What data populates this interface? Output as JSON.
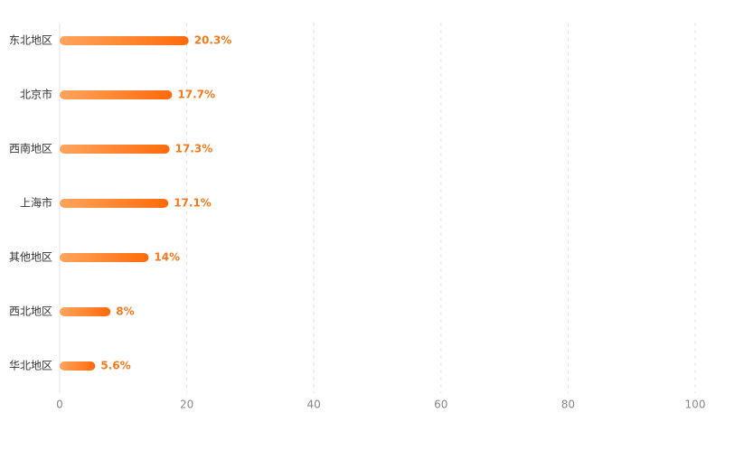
{
  "chart_data": {
    "type": "bar",
    "orientation": "horizontal",
    "categories": [
      "东北地区",
      "北京市",
      "西南地区",
      "上海市",
      "其他地区",
      "西北地区",
      "华北地区"
    ],
    "values": [
      20.3,
      17.7,
      17.3,
      17.1,
      14,
      8,
      5.6
    ],
    "value_labels": [
      "20.3%",
      "17.7%",
      "17.3%",
      "17.1%",
      "14%",
      "8%",
      "5.6%"
    ],
    "color": [
      "#ffa55e",
      "#ff6a0a"
    ],
    "xlim": [
      0,
      100
    ],
    "xticks": [
      0,
      20,
      40,
      60,
      80,
      100
    ],
    "grid": true
  }
}
